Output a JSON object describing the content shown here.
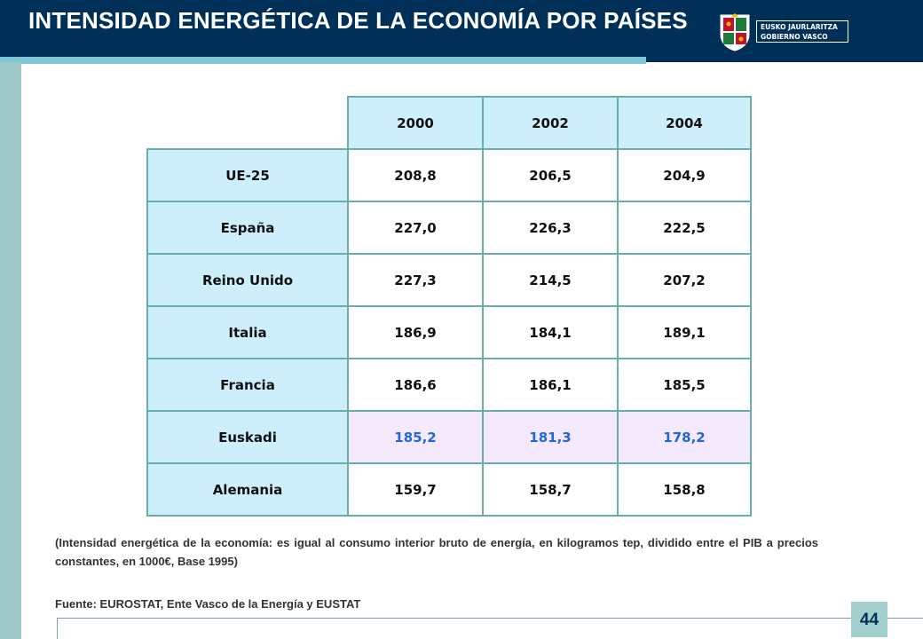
{
  "header": {
    "title": "INTENSIDAD ENERGÉTICA DE LA ECONOMÍA POR PAÍSES",
    "logo_line1": "EUSKO JAURLARITZA",
    "logo_line2": "GOBIERNO VASCO",
    "bg_color": "#003057",
    "stripe_color": "#7fc7d7"
  },
  "table": {
    "years": [
      "2000",
      "2002",
      "2004"
    ],
    "rows": [
      {
        "country": "UE-25",
        "values": [
          "208,8",
          "206,5",
          "204,9"
        ]
      },
      {
        "country": "España",
        "values": [
          "227,0",
          "226,3",
          "222,5"
        ]
      },
      {
        "country": "Reino Unido",
        "values": [
          "227,3",
          "214,5",
          "207,2"
        ]
      },
      {
        "country": "Italia",
        "values": [
          "186,9",
          "184,1",
          "189,1"
        ]
      },
      {
        "country": "Francia",
        "values": [
          "186,6",
          "186,1",
          "185,5"
        ]
      },
      {
        "country": "Euskadi",
        "values": [
          "185,2",
          "181,3",
          "178,2"
        ]
      },
      {
        "country": "Alemania",
        "values": [
          "159,7",
          "158,7",
          "158,8"
        ]
      }
    ],
    "highlight_row": "Euskadi",
    "highlight_color": "#2266dd"
  },
  "note": "(Intensidad energética de la economía: es igual al consumo interior bruto de energía, en kilogramos tep, dividido entre el PIB a precios constantes, en 1000€, Base 1995)",
  "source": "Fuente: EUROSTAT, Ente Vasco de la Energía y EUSTAT",
  "page_number": "44"
}
